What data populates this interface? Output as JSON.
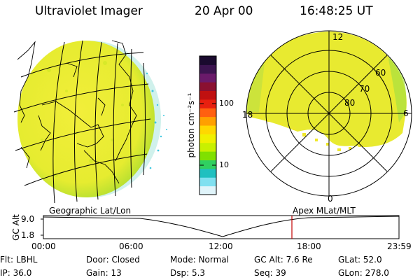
{
  "header": {
    "title": "Ultraviolet Imager",
    "date": "20 Apr 00",
    "time": "16:48:25 UT"
  },
  "colorbar": {
    "unit": "photon cm⁻²s⁻¹",
    "ticks": [
      "100",
      "10"
    ],
    "colors": [
      "#1a0a2e",
      "#3c1450",
      "#6a1a6a",
      "#8a1030",
      "#c01010",
      "#e82010",
      "#ff6010",
      "#ffa000",
      "#ffd800",
      "#f0f000",
      "#c8f000",
      "#80e000",
      "#30d060",
      "#20c0c0",
      "#80e0f0",
      "#e0f4fa"
    ]
  },
  "polar_plot": {
    "mlt_labels": {
      "top": "12",
      "right": "6",
      "bottom": "0",
      "left": "18"
    },
    "lat_labels": [
      "60",
      "70",
      "80"
    ]
  },
  "timeline": {
    "left_label": "Geographic Lat/Lon",
    "right_label": "Apex MLat/MLT",
    "axis_title": "GC Alt",
    "y_ticks": [
      "9.0",
      "1.8"
    ],
    "x_ticks": [
      "00:00",
      "06:00",
      "12:00",
      "18:00",
      "23:59"
    ],
    "marker_color": "#c00000"
  },
  "status": {
    "row1": [
      {
        "label": "Flt:",
        "value": "LBHL"
      },
      {
        "label": "Door:",
        "value": "Closed"
      },
      {
        "label": "Mode:",
        "value": "Normal"
      },
      {
        "label": "GC Alt:",
        "value": "7.6 Re"
      },
      {
        "label": "GLat:",
        "value": "52.0"
      }
    ],
    "row2": [
      {
        "label": "IP:",
        "value": "36.0"
      },
      {
        "label": "Gain:",
        "value": "13"
      },
      {
        "label": "Dsp:",
        "value": "5.3"
      },
      {
        "label": "Seq:",
        "value": "39"
      },
      {
        "label": "GLon:",
        "value": "278.0"
      }
    ]
  }
}
